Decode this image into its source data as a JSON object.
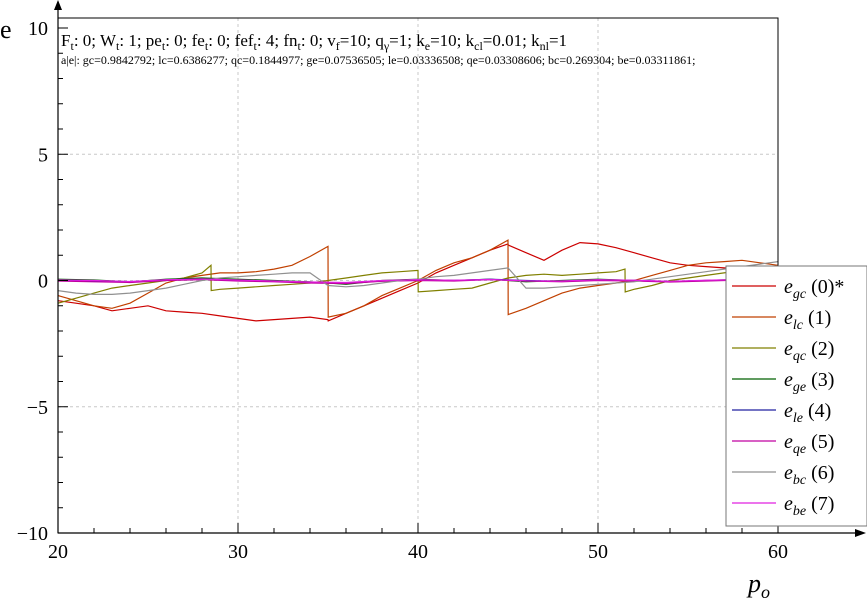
{
  "chart_data": {
    "type": "line",
    "ylabel": "e",
    "xlabel_main": "p",
    "xlabel_sub": "o",
    "xlim": [
      20,
      60
    ],
    "ylim": [
      -10,
      10
    ],
    "xticks": [
      20,
      30,
      40,
      50,
      60
    ],
    "yticks": [
      -10,
      -5,
      0,
      5,
      10
    ],
    "ytick_labels": [
      "−10",
      "−5",
      "0",
      "5",
      "10"
    ],
    "grid": true,
    "legend_position": "right",
    "info_line1": "F_t: 0; W_t: 1; pe_t: 0; fe_t: 0; fef_t: 4; fn_t: 0; v_f=10; q_γ=1; k_e=10; k_cl=0.01; k_nl=1",
    "info_line1_parts": [
      {
        "t": "F",
        "sub": "t",
        "after": ": 0; "
      },
      {
        "t": "W",
        "sub": "t",
        "after": ": 1; "
      },
      {
        "t": "pe",
        "sub": "t",
        "after": ": 0; "
      },
      {
        "t": "fe",
        "sub": "t",
        "after": ": 0; "
      },
      {
        "t": "fef",
        "sub": "t",
        "after": ": 4; "
      },
      {
        "t": "fn",
        "sub": "t",
        "after": ": 0; "
      },
      {
        "t": "v",
        "sub": "f",
        "after": "=10; "
      },
      {
        "t": "q",
        "sub": "γ",
        "after": "=1; "
      },
      {
        "t": "k",
        "sub": "e",
        "after": "=10; "
      },
      {
        "t": "k",
        "sub": "cl",
        "after": "=0.01; "
      },
      {
        "t": "k",
        "sub": "nl",
        "after": "=1"
      }
    ],
    "info_line2": "a|e|: gc=0.9842792; lc=0.6386277; qc=0.1844977; ge=0.07536505; le=0.03336508; qe=0.03308606; bc=0.269304; be=0.03311861;",
    "series": [
      {
        "name": "e_gc (0)*",
        "sym": "e",
        "sub": "gc",
        "tag": "(0)*",
        "color": "#cc0000",
        "x": [
          20,
          21,
          22,
          23,
          24,
          25,
          26,
          27,
          28,
          29,
          30,
          31,
          32,
          33,
          34,
          35,
          35.01,
          36,
          37,
          38,
          39,
          40,
          41,
          42,
          43,
          44,
          45,
          45.01,
          46,
          47,
          48,
          49,
          50,
          51,
          52,
          53,
          54,
          55,
          56,
          57,
          58,
          59,
          60
        ],
        "y": [
          -0.8,
          -0.9,
          -1.0,
          -1.2,
          -1.1,
          -1.0,
          -1.2,
          -1.25,
          -1.3,
          -1.4,
          -1.5,
          -1.6,
          -1.55,
          -1.5,
          -1.45,
          -1.55,
          -1.6,
          -1.3,
          -1.0,
          -0.7,
          -0.4,
          -0.1,
          0.3,
          0.6,
          0.9,
          1.2,
          1.45,
          1.4,
          1.1,
          0.8,
          1.2,
          1.5,
          1.45,
          1.3,
          1.1,
          0.9,
          0.7,
          0.6,
          0.55,
          0.5,
          0.45,
          0.4,
          0.35
        ]
      },
      {
        "name": "e_lc (1)",
        "sym": "e",
        "sub": "lc",
        "tag": "(1)",
        "color": "#c04000",
        "x": [
          20,
          21,
          22,
          23,
          24,
          25,
          26,
          27,
          28,
          29,
          30,
          31,
          32,
          33,
          34,
          35,
          35.01,
          36,
          37,
          38,
          39,
          40,
          41,
          42,
          43,
          44,
          45,
          45.01,
          46,
          47,
          48,
          49,
          50,
          51,
          52,
          53,
          54,
          55,
          56,
          57,
          58,
          59,
          60
        ],
        "y": [
          -0.6,
          -0.8,
          -1.0,
          -1.1,
          -0.9,
          -0.5,
          -0.1,
          0.1,
          0.2,
          0.3,
          0.3,
          0.35,
          0.45,
          0.6,
          0.95,
          1.35,
          -1.45,
          -1.3,
          -1.0,
          -0.6,
          -0.3,
          0.0,
          0.4,
          0.7,
          0.9,
          1.2,
          1.6,
          -1.35,
          -1.1,
          -0.8,
          -0.5,
          -0.3,
          -0.2,
          -0.1,
          0.0,
          0.2,
          0.4,
          0.6,
          0.7,
          0.75,
          0.8,
          0.7,
          0.6
        ]
      },
      {
        "name": "e_qc (2)",
        "sym": "e",
        "sub": "qc",
        "tag": "(2)",
        "color": "#808000",
        "x": [
          20,
          21,
          22,
          23,
          24,
          25,
          26,
          27,
          28,
          28.5,
          28.51,
          29,
          30,
          31,
          32,
          33,
          34,
          35,
          36,
          37,
          38,
          39,
          40,
          40.01,
          41,
          42,
          43,
          44,
          45,
          46,
          47,
          48,
          49,
          50,
          51,
          51.5,
          51.51,
          52,
          53,
          54,
          55,
          56,
          57,
          58,
          59,
          60
        ],
        "y": [
          -0.9,
          -0.7,
          -0.5,
          -0.3,
          -0.2,
          -0.1,
          0.0,
          0.1,
          0.3,
          0.6,
          -0.4,
          -0.35,
          -0.3,
          -0.25,
          -0.2,
          -0.15,
          -0.1,
          0.0,
          0.1,
          0.2,
          0.3,
          0.35,
          0.4,
          -0.45,
          -0.4,
          -0.35,
          -0.3,
          -0.1,
          0.1,
          0.2,
          0.25,
          0.2,
          0.25,
          0.3,
          0.35,
          0.45,
          -0.45,
          -0.35,
          -0.2,
          0.0,
          0.1,
          0.2,
          0.3,
          0.4,
          0.5,
          0.5
        ]
      },
      {
        "name": "e_ge (3)",
        "sym": "e",
        "sub": "ge",
        "tag": "(3)",
        "color": "#006000",
        "x": [
          20,
          22,
          24,
          26,
          28,
          30,
          32,
          34,
          36,
          38,
          40,
          42,
          44,
          46,
          48,
          50,
          52,
          54,
          56,
          58,
          60
        ],
        "y": [
          0.05,
          0.02,
          -0.05,
          0.05,
          0.1,
          0.05,
          0.0,
          -0.05,
          -0.15,
          0.0,
          0.05,
          0.0,
          0.05,
          -0.05,
          0.0,
          0.05,
          0.0,
          -0.05,
          0.0,
          0.05,
          0.05
        ]
      },
      {
        "name": "e_le (4)",
        "sym": "e",
        "sub": "le",
        "tag": "(4)",
        "color": "#2020a0",
        "x": [
          20,
          22,
          24,
          26,
          28,
          30,
          32,
          34,
          36,
          38,
          40,
          42,
          44,
          46,
          48,
          50,
          52,
          54,
          56,
          58,
          60
        ],
        "y": [
          0.0,
          -0.03,
          -0.05,
          0.02,
          0.05,
          0.0,
          -0.03,
          -0.08,
          -0.1,
          -0.02,
          0.02,
          0.0,
          0.05,
          0.0,
          -0.03,
          0.02,
          0.0,
          -0.04,
          0.0,
          0.03,
          0.02
        ]
      },
      {
        "name": "e_qe (5)",
        "sym": "e",
        "sub": "qe",
        "tag": "(5)",
        "color": "#c000a0",
        "x": [
          20,
          22,
          24,
          26,
          28,
          30,
          32,
          34,
          36,
          38,
          40,
          42,
          44,
          46,
          48,
          50,
          52,
          54,
          56,
          58,
          60
        ],
        "y": [
          -0.02,
          -0.05,
          -0.08,
          0.0,
          0.03,
          -0.02,
          -0.05,
          -0.1,
          -0.12,
          -0.03,
          0.0,
          -0.02,
          0.03,
          -0.02,
          -0.05,
          0.0,
          -0.02,
          -0.06,
          -0.02,
          0.02,
          0.0
        ]
      },
      {
        "name": "e_bc (6)",
        "sym": "e",
        "sub": "bc",
        "tag": "(6)",
        "color": "#909090",
        "x": [
          20,
          21,
          22,
          23,
          24,
          25,
          26,
          27,
          28,
          29,
          30,
          31,
          32,
          33,
          34,
          35,
          36,
          37,
          38,
          39,
          40,
          41,
          42,
          43,
          44,
          45,
          46,
          47,
          48,
          49,
          50,
          51,
          52,
          53,
          54,
          55,
          56,
          57,
          58,
          59,
          60
        ],
        "y": [
          -0.4,
          -0.5,
          -0.55,
          -0.55,
          -0.5,
          -0.4,
          -0.3,
          -0.15,
          0.0,
          0.1,
          0.15,
          0.2,
          0.25,
          0.3,
          0.3,
          -0.2,
          -0.25,
          -0.2,
          -0.1,
          0.0,
          0.05,
          0.15,
          0.2,
          0.3,
          0.4,
          0.5,
          -0.3,
          -0.3,
          -0.25,
          -0.2,
          -0.15,
          -0.1,
          -0.05,
          0.05,
          0.15,
          0.25,
          0.35,
          0.45,
          0.55,
          0.65,
          0.75
        ]
      },
      {
        "name": "e_be (7)",
        "sym": "e",
        "sub": "be",
        "tag": "(7)",
        "color": "#e020e0",
        "x": [
          20,
          22,
          24,
          26,
          28,
          30,
          32,
          34,
          36,
          38,
          40,
          42,
          44,
          46,
          48,
          50,
          52,
          54,
          56,
          58,
          60
        ],
        "y": [
          0.02,
          0.0,
          -0.04,
          0.03,
          0.06,
          0.02,
          -0.02,
          -0.06,
          -0.08,
          0.0,
          0.03,
          0.01,
          0.04,
          -0.01,
          -0.02,
          0.03,
          0.01,
          -0.03,
          0.01,
          0.04,
          0.03
        ]
      }
    ]
  }
}
